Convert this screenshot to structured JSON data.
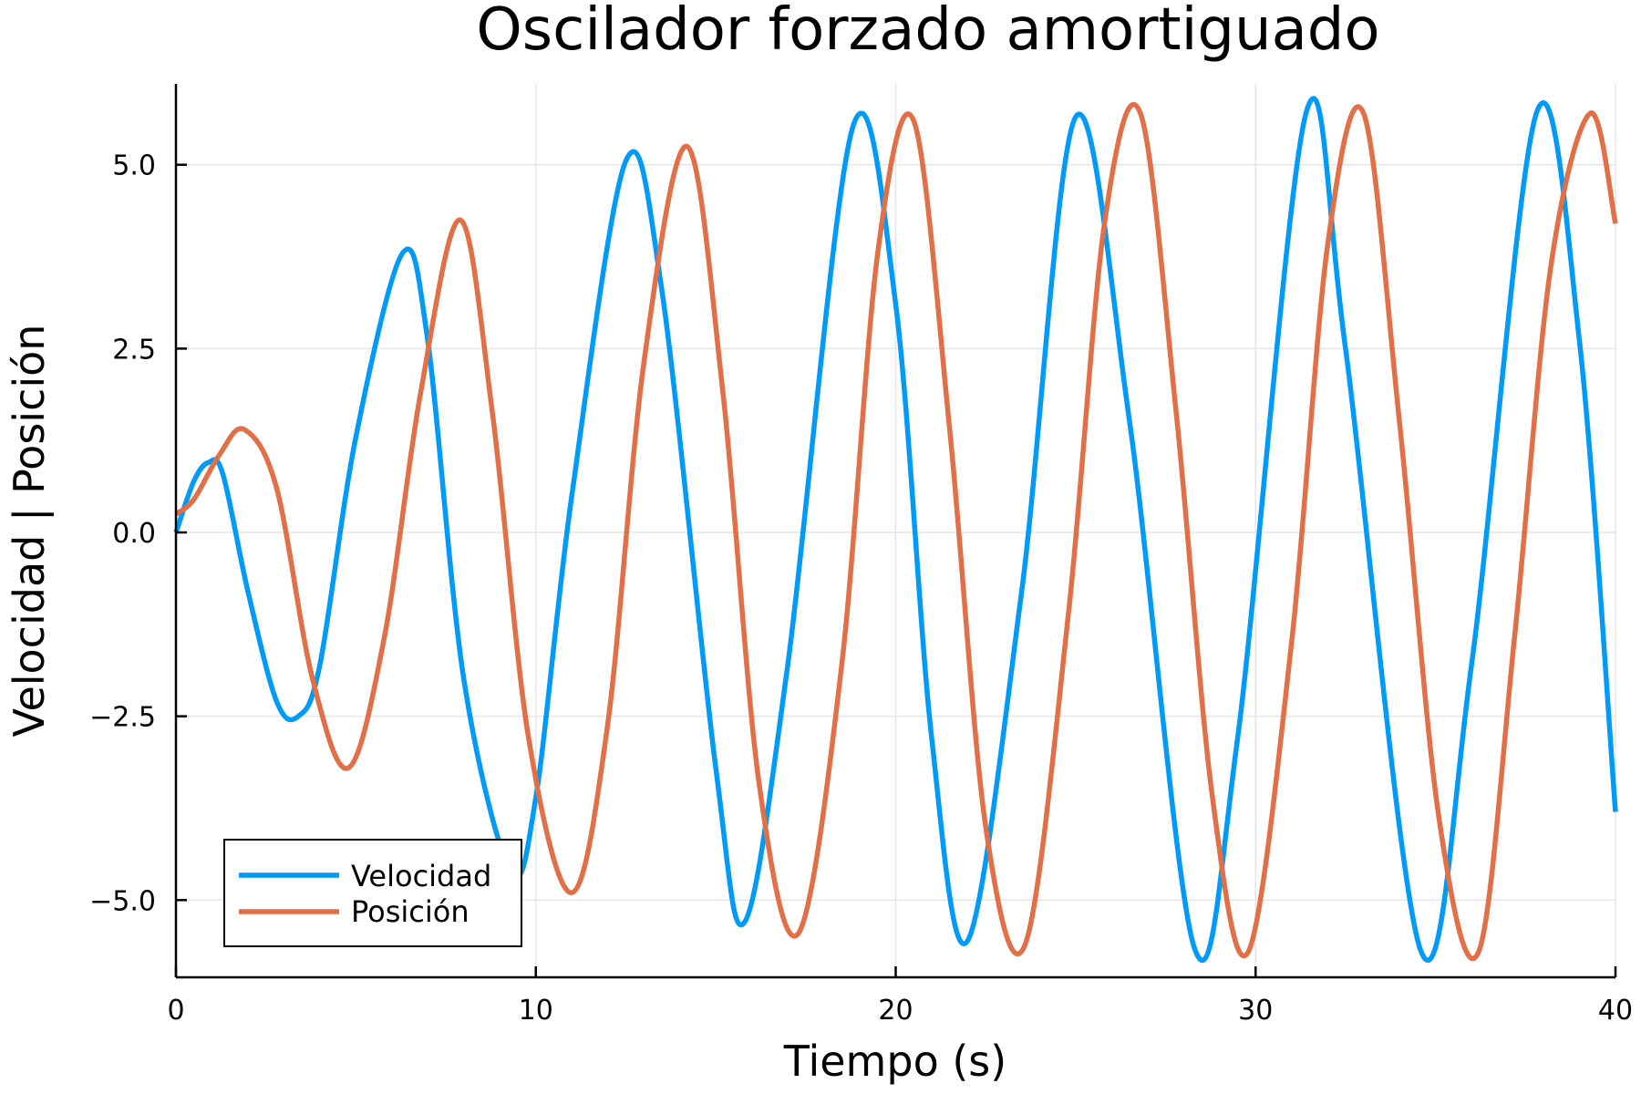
{
  "chart_data": {
    "type": "line",
    "title": "Oscilador forzado amortiguado",
    "xlabel": "Tiempo (s)",
    "ylabel": "Velocidad | Posición",
    "xlim": [
      0,
      40
    ],
    "ylim": [
      -6.05,
      6.1
    ],
    "xticks": [
      0,
      10,
      20,
      30,
      40
    ],
    "xtick_labels": [
      "0",
      "10",
      "20",
      "30",
      "40"
    ],
    "yticks": [
      -5,
      -2.5,
      0,
      2.5,
      5
    ],
    "ytick_labels": [
      "−5.0",
      "−2.5",
      "0.0",
      "2.5",
      "5.0"
    ],
    "grid": true,
    "legend_position": "bottom-left",
    "series": [
      {
        "name": "Velocidad",
        "color": "#009af9",
        "x": [
          0,
          0.5,
          0.9,
          1.3,
          2,
          2.8,
          3.4,
          4,
          5,
          6.3,
          7,
          8,
          9.3,
          10,
          11,
          12.5,
          13.5,
          15,
          15.8,
          17,
          18.8,
          20,
          21,
          22,
          23.5,
          25,
          26.5,
          28.3,
          29.5,
          31.4,
          32.5,
          34.6,
          36,
          37.8,
          39,
          40
        ],
        "y": [
          0,
          0.7,
          0.95,
          0.8,
          -0.8,
          -2.3,
          -2.5,
          -1.8,
          1.3,
          3.8,
          2.6,
          -2,
          -4.6,
          -3.6,
          0.5,
          5.05,
          3.3,
          -3.2,
          -5.3,
          -1.8,
          5.5,
          3.1,
          -2.8,
          -5.55,
          -0.8,
          5.65,
          1.5,
          -5.65,
          -2.8,
          5.7,
          2.5,
          -5.7,
          -1.8,
          5.7,
          2.6,
          -3.8
        ]
      },
      {
        "name": "Posición",
        "color": "#e26f46",
        "x": [
          0,
          0.5,
          1.2,
          1.9,
          2.8,
          3.8,
          4.8,
          5.8,
          6.8,
          7.9,
          8.8,
          9.8,
          11,
          12,
          13,
          14.2,
          15.2,
          16.2,
          17.3,
          18.5,
          19.5,
          20.5,
          21.5,
          22.5,
          23.6,
          24.8,
          25.8,
          26.8,
          27.8,
          28.8,
          29.8,
          31,
          32,
          33,
          34,
          35.1,
          36.2,
          37.2,
          38.2,
          39.3,
          40
        ],
        "y": [
          0.25,
          0.45,
          1.05,
          1.4,
          0.6,
          -2,
          -3.2,
          -1.4,
          1.9,
          4.25,
          1.6,
          -2.8,
          -4.9,
          -2.6,
          2.3,
          5.25,
          1.9,
          -3.4,
          -5.45,
          -1.8,
          3.8,
          5.6,
          1.4,
          -4,
          -5.6,
          -1.1,
          4.2,
          5.7,
          1.6,
          -3.6,
          -5.7,
          -1.5,
          3.9,
          5.7,
          1.5,
          -3.9,
          -5.7,
          -1.4,
          3.6,
          5.7,
          4.2
        ]
      }
    ]
  }
}
